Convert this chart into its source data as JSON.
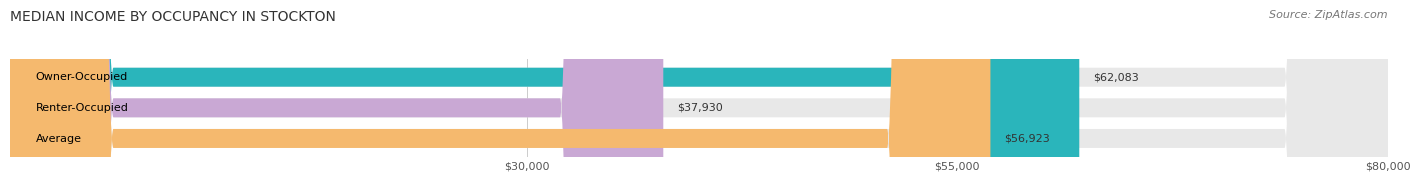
{
  "title": "MEDIAN INCOME BY OCCUPANCY IN STOCKTON",
  "source": "Source: ZipAtlas.com",
  "categories": [
    "Owner-Occupied",
    "Renter-Occupied",
    "Average"
  ],
  "values": [
    62083,
    37930,
    56923
  ],
  "bar_colors": [
    "#2ab5bb",
    "#c9a8d4",
    "#f5b96e"
  ],
  "bg_bar_color": "#e8e8e8",
  "value_labels": [
    "$62,083",
    "$37,930",
    "$56,923"
  ],
  "xmin": 0,
  "xmax": 80000,
  "xticks": [
    30000,
    55000,
    80000
  ],
  "xtick_labels": [
    "$30,000",
    "$55,000",
    "$80,000"
  ],
  "title_fontsize": 10,
  "label_fontsize": 8,
  "tick_fontsize": 8,
  "source_fontsize": 8
}
